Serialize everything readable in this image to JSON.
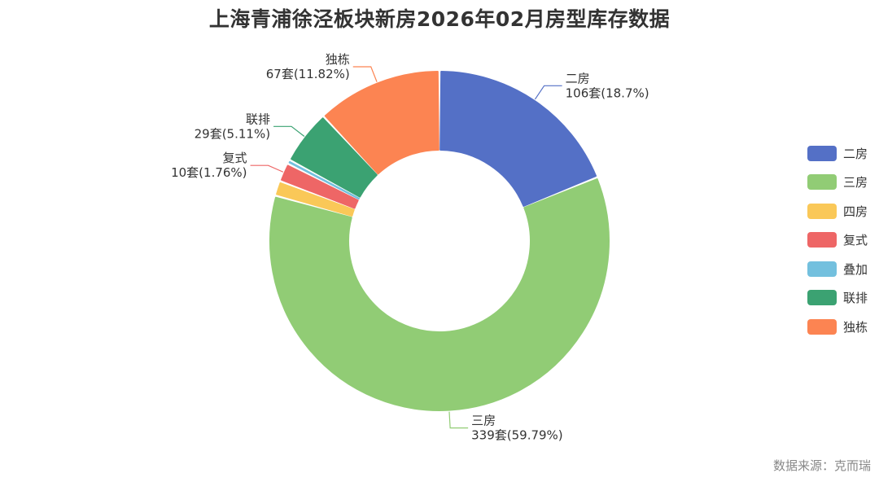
{
  "title": "上海青浦徐泾板块新房2026年02月房型库存数据",
  "source": "数据来源：克而瑞",
  "unit": "套",
  "chart_data": {
    "type": "pie",
    "variant": "donut",
    "title": "上海青浦徐泾板块新房2026年02月房型库存数据",
    "legend_position": "right",
    "slices": [
      {
        "name": "二房",
        "value": 106,
        "percent": "18.7%",
        "color": "#5470c6",
        "show_label": true
      },
      {
        "name": "三房",
        "value": 339,
        "percent": "59.79%",
        "color": "#91cc75",
        "show_label": true
      },
      {
        "name": "四房",
        "value": 0,
        "percent": "",
        "color": "#fac858",
        "show_label": false
      },
      {
        "name": "复式",
        "value": 10,
        "percent": "1.76%",
        "color": "#ee6666",
        "show_label": true
      },
      {
        "name": "叠加",
        "value": 0,
        "percent": "",
        "color": "#73c0de",
        "show_label": false
      },
      {
        "name": "联排",
        "value": 29,
        "percent": "5.11%",
        "color": "#3ba272",
        "show_label": true
      },
      {
        "name": "独栋",
        "value": 67,
        "percent": "11.82%",
        "color": "#fc8452",
        "show_label": true
      }
    ],
    "note": "四房 and 叠加 values are not printed in the image"
  }
}
